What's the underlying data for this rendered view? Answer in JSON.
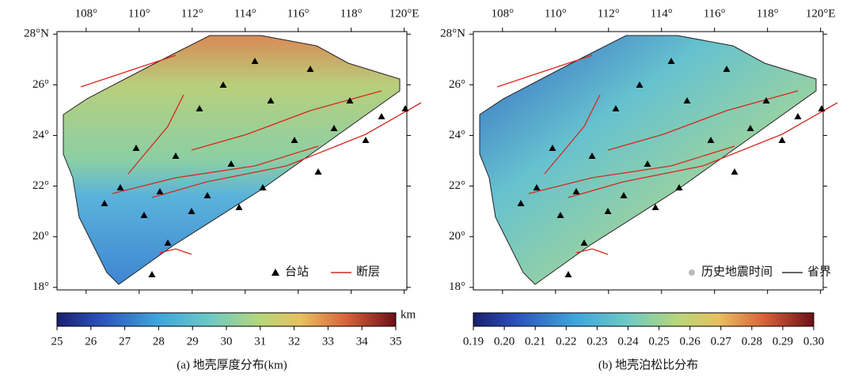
{
  "panels": [
    {
      "lon_lim": [
        106.9,
        120.1
      ],
      "lat_lim": [
        17.9,
        28.1
      ],
      "lon_ticks": [
        {
          "value": 108,
          "label": "108°"
        },
        {
          "value": 110,
          "label": "110°"
        },
        {
          "value": 112,
          "label": "112°"
        },
        {
          "value": 114,
          "label": "114°"
        },
        {
          "value": 116,
          "label": "116°"
        },
        {
          "value": 118,
          "label": "118°"
        },
        {
          "value": 120,
          "label": "120°E"
        }
      ],
      "lat_ticks": [
        {
          "value": 28,
          "label": "28°N"
        },
        {
          "value": 26,
          "label": "26°"
        },
        {
          "value": 24,
          "label": "24°"
        },
        {
          "value": 22,
          "label": "22°"
        },
        {
          "value": 20,
          "label": "20°"
        },
        {
          "value": 18,
          "label": "18°"
        }
      ],
      "legend": [
        "台站",
        "断层"
      ],
      "colorbar": {
        "ticks": [
          25,
          26,
          27,
          28,
          29,
          30,
          31,
          32,
          33,
          34,
          35
        ],
        "unit": "km"
      },
      "caption": "(a) 地壳厚度分布(km)"
    },
    {
      "lon_lim": [
        106.9,
        120.1
      ],
      "lat_lim": [
        17.9,
        28.1
      ],
      "lon_ticks": [
        {
          "value": 108,
          "label": "108°"
        },
        {
          "value": 110,
          "label": "110°"
        },
        {
          "value": 112,
          "label": "112°"
        },
        {
          "value": 114,
          "label": "114°"
        },
        {
          "value": 116,
          "label": "116°"
        },
        {
          "value": 118,
          "label": "118°"
        },
        {
          "value": 120,
          "label": "120°E"
        }
      ],
      "lat_ticks": [
        {
          "value": 28,
          "label": "28°N"
        },
        {
          "value": 26,
          "label": "26°"
        },
        {
          "value": 24,
          "label": "24°"
        },
        {
          "value": 22,
          "label": "22°"
        },
        {
          "value": 20,
          "label": "20°"
        },
        {
          "value": 18,
          "label": "18°"
        }
      ],
      "legend": [
        "历史地震时间",
        "省界"
      ],
      "colorbar": {
        "ticks": [
          0.19,
          {
            "value": 0.2,
            "label": "0.20"
          },
          0.21,
          0.22,
          0.23,
          0.24,
          0.25,
          0.26,
          0.27,
          0.28,
          0.29,
          {
            "value": 0.3,
            "label": "0.30"
          }
        ]
      },
      "caption": "(b) 地壳泊松比分布"
    }
  ]
}
